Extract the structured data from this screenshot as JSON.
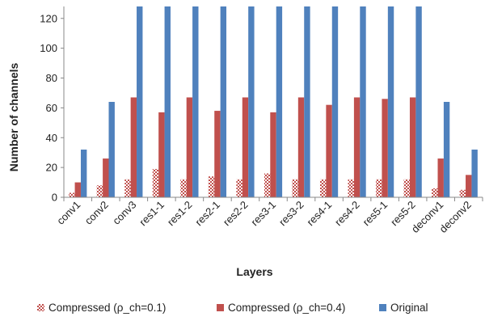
{
  "chart_data": {
    "type": "bar",
    "xlabel": "Layers",
    "ylabel": "Number of channels",
    "ylim": [
      0,
      128
    ],
    "yticks": [
      0,
      20,
      40,
      60,
      80,
      100,
      120
    ],
    "grid": false,
    "legend_position": "bottom",
    "categories": [
      "conv1",
      "conv2",
      "conv3",
      "res1-1",
      "res1-2",
      "res2-1",
      "res2-2",
      "res3-1",
      "res3-2",
      "res4-1",
      "res4-2",
      "res5-1",
      "res5-2",
      "deconv1",
      "deconv2"
    ],
    "series": [
      {
        "name": "Compressed (ρ_ch=0.1)",
        "color": "#c0504d",
        "pattern": "checkered",
        "values": [
          3,
          8,
          12,
          19,
          12,
          14,
          12,
          16,
          12,
          12,
          12,
          12,
          12,
          6,
          5
        ]
      },
      {
        "name": "Compressed (ρ_ch=0.4)",
        "color": "#c0504d",
        "values": [
          10,
          26,
          67,
          57,
          67,
          58,
          67,
          57,
          67,
          62,
          67,
          66,
          67,
          26,
          15
        ]
      },
      {
        "name": "Original",
        "color": "#4f81bd",
        "values": [
          32,
          64,
          128,
          128,
          128,
          128,
          128,
          128,
          128,
          128,
          128,
          128,
          128,
          64,
          32
        ]
      }
    ]
  }
}
